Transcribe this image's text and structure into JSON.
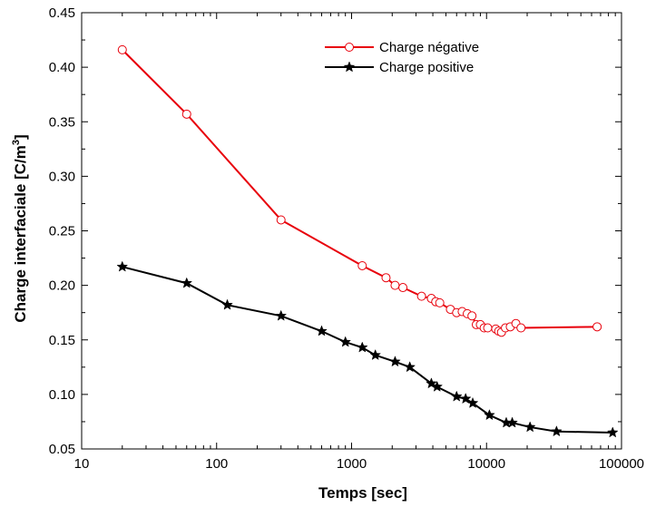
{
  "chart_data": {
    "type": "line",
    "xlabel": "Temps [sec]",
    "ylabel_main": "Charge interfaciale [C/m",
    "ylabel_sup": "3",
    "ylabel_tail": "]",
    "xscale": "log",
    "xlim": [
      10,
      100000
    ],
    "ylim": [
      0.05,
      0.45
    ],
    "x_ticks": [
      "10",
      "100",
      "1000",
      "10000",
      "100000"
    ],
    "y_ticks": [
      "0.05",
      "0.10",
      "0.15",
      "0.20",
      "0.25",
      "0.30",
      "0.35",
      "0.40",
      "0.45"
    ],
    "legend_position": "top-right",
    "series": [
      {
        "name": "Charge négative",
        "color": "#e8000b",
        "marker": "open-circle",
        "x": [
          20,
          60,
          300,
          1200,
          1800,
          2100,
          2400,
          3300,
          3900,
          4200,
          4500,
          5400,
          6000,
          6600,
          7200,
          7800,
          8400,
          9000,
          9600,
          10200,
          11700,
          12300,
          12900,
          13800,
          15000,
          16500,
          18000,
          66000
        ],
        "y": [
          0.416,
          0.357,
          0.26,
          0.218,
          0.207,
          0.2,
          0.198,
          0.19,
          0.188,
          0.185,
          0.184,
          0.178,
          0.175,
          0.176,
          0.174,
          0.172,
          0.164,
          0.164,
          0.161,
          0.161,
          0.16,
          0.158,
          0.157,
          0.161,
          0.162,
          0.165,
          0.161,
          0.162
        ]
      },
      {
        "name": "Charge positive",
        "color": "#000000",
        "marker": "filled-star",
        "x": [
          20,
          60,
          120,
          300,
          600,
          900,
          1200,
          1500,
          2100,
          2700,
          3900,
          4300,
          6000,
          7000,
          7900,
          10500,
          14000,
          15500,
          21000,
          33000,
          86000
        ],
        "y": [
          0.217,
          0.202,
          0.182,
          0.172,
          0.158,
          0.148,
          0.143,
          0.136,
          0.13,
          0.125,
          0.11,
          0.107,
          0.098,
          0.096,
          0.092,
          0.081,
          0.074,
          0.074,
          0.07,
          0.066,
          0.065
        ]
      }
    ]
  }
}
